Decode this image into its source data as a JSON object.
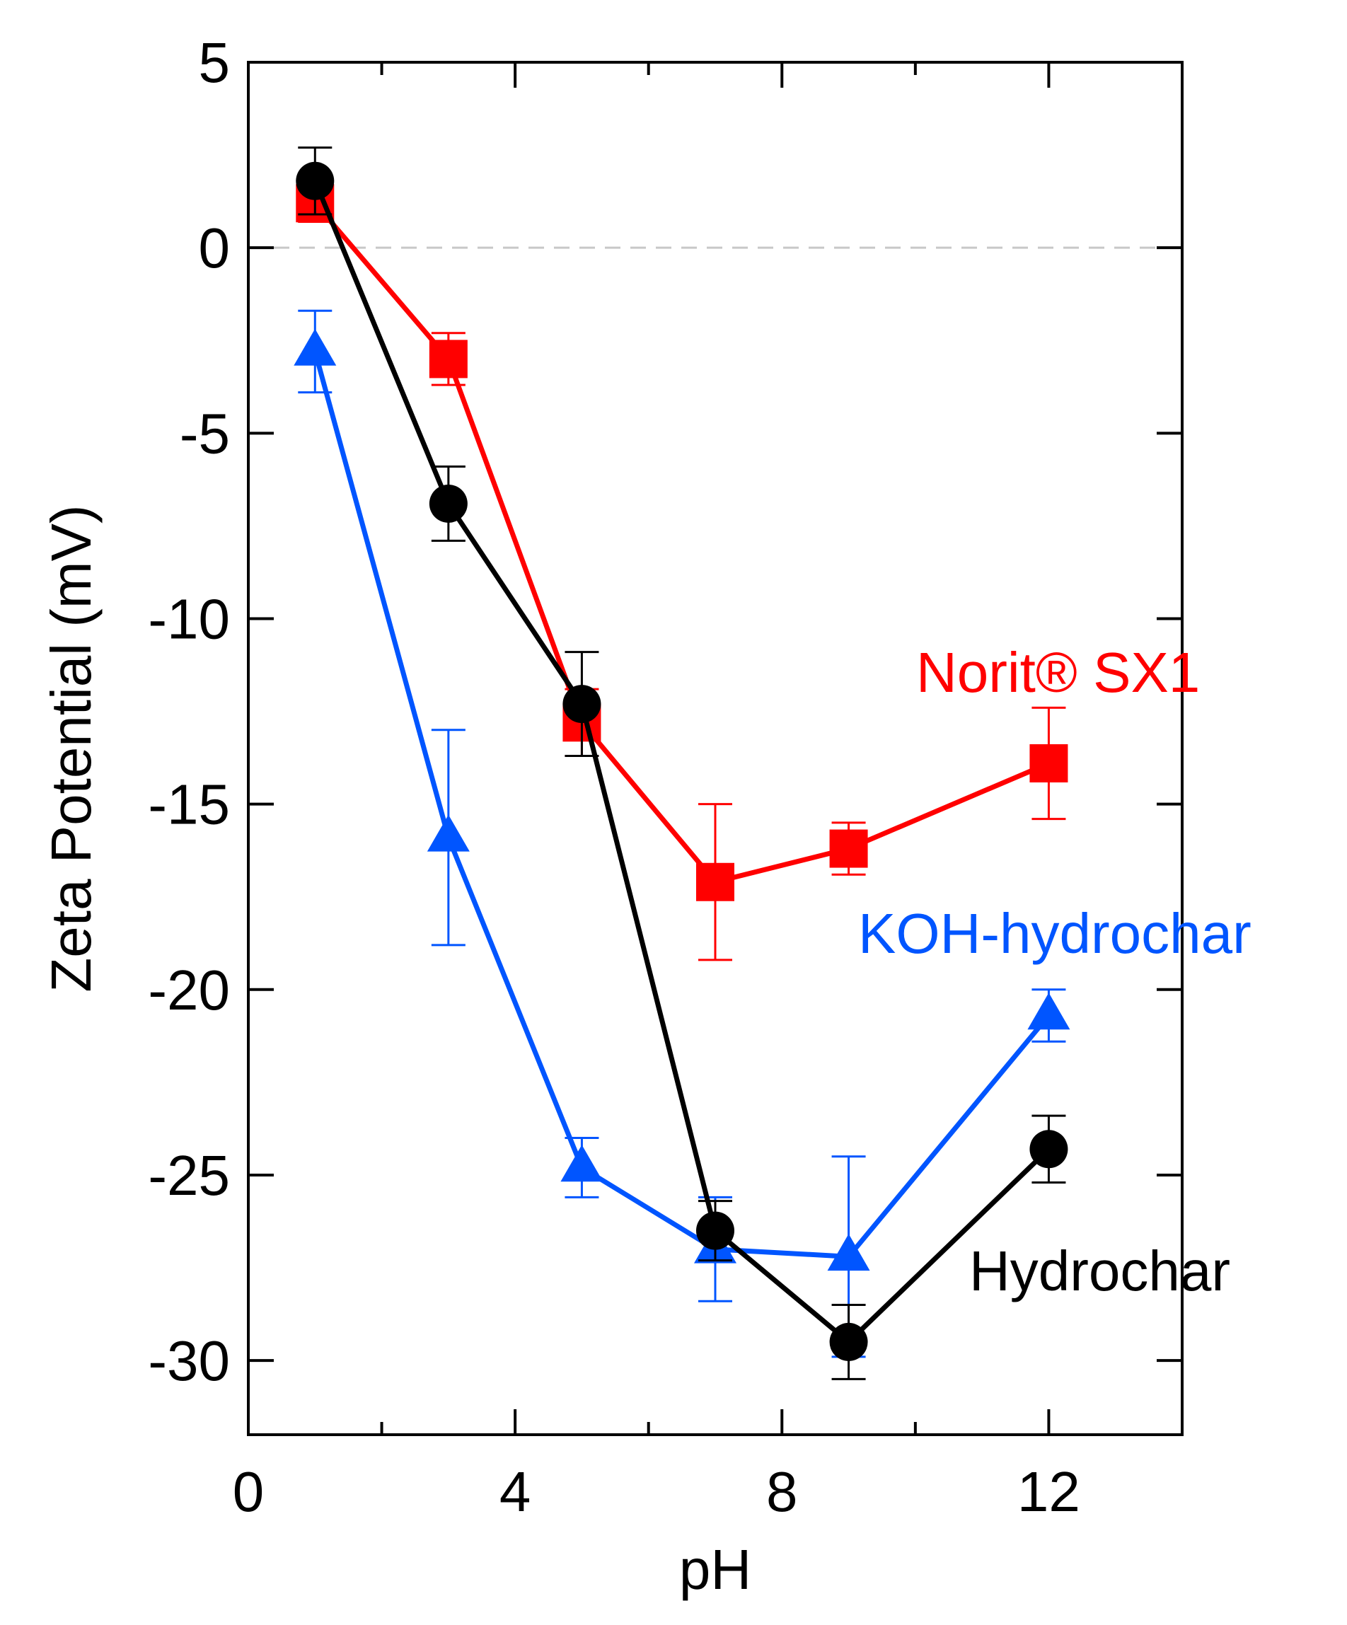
{
  "chart_data": {
    "type": "line",
    "title": "",
    "xlabel": "pH",
    "ylabel": "Zeta Potential (mV)",
    "xlim": [
      0,
      14
    ],
    "ylim": [
      -32,
      5
    ],
    "xticks": [
      0,
      4,
      8,
      12
    ],
    "yticks": [
      5,
      0,
      -5,
      -10,
      -15,
      -20,
      -25,
      -30
    ],
    "zero_reference_line": true,
    "grid": false,
    "legend": "inline labels near series (right side)",
    "series": [
      {
        "name": "Hydrochar",
        "label": "Hydrochar",
        "color": "#000000",
        "marker": "circle",
        "x": [
          1,
          3,
          5,
          7,
          9,
          12
        ],
        "y": [
          1.8,
          -6.9,
          -12.3,
          -26.5,
          -29.5,
          -24.3
        ],
        "err": [
          0.9,
          1.0,
          1.4,
          0.8,
          1.0,
          0.9
        ]
      },
      {
        "name": "Norit® SX1",
        "label": "Norit® SX1",
        "color": "#ff0000",
        "marker": "square",
        "x": [
          1,
          3,
          5,
          7,
          9,
          12
        ],
        "y": [
          1.2,
          -3.0,
          -12.8,
          -17.1,
          -16.2,
          -13.9
        ],
        "err": [
          0.5,
          0.7,
          0.9,
          2.1,
          0.7,
          1.5
        ]
      },
      {
        "name": "KOH-hydrochar",
        "label": "KOH-hydrochar",
        "color": "#0055ff",
        "marker": "triangle",
        "x": [
          1,
          3,
          5,
          7,
          9,
          12
        ],
        "y": [
          -2.8,
          -15.9,
          -24.8,
          -27.0,
          -27.2,
          -20.7
        ],
        "err": [
          1.1,
          2.9,
          0.8,
          1.4,
          2.7,
          0.7
        ]
      }
    ]
  }
}
